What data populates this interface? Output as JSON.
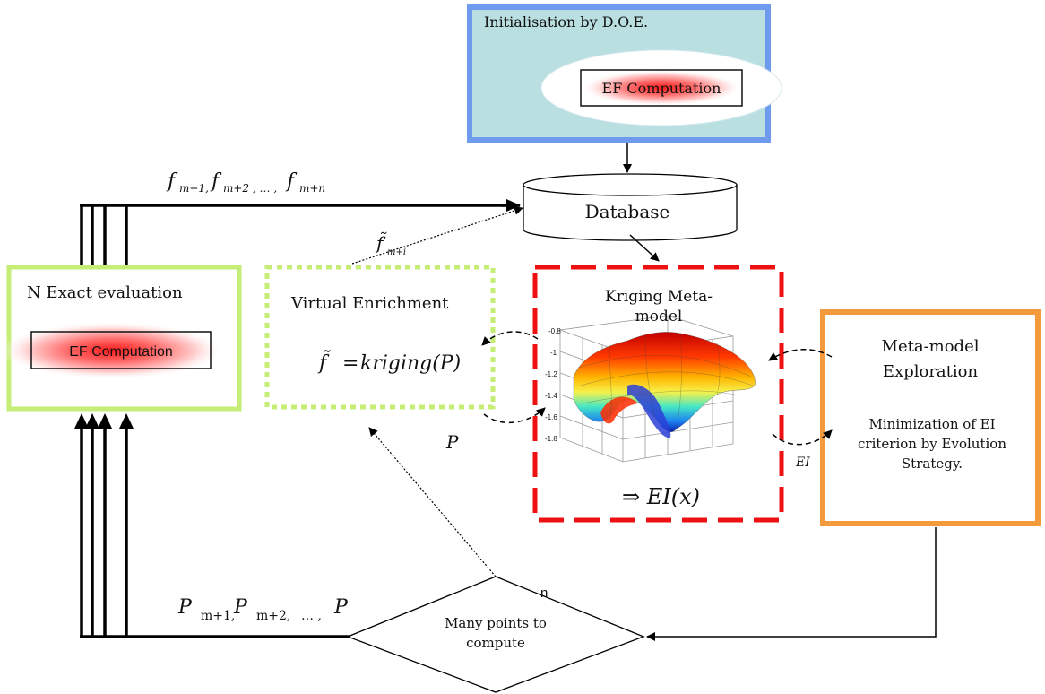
{
  "init_box": {
    "title": "Initialisation by D.O.E.",
    "ef_label": "EF Computation",
    "border_color": "#6f9bef",
    "fill_color": "#b9dfe0"
  },
  "database": {
    "label": "Database"
  },
  "exact_eval": {
    "title": "N Exact evaluation",
    "ef_label": "EF Computation",
    "border_color": "#c6ed76"
  },
  "virtual_enrichment": {
    "title": "Virtual Enrichment",
    "formula_lhs": "f̃",
    "formula_eq": "=",
    "formula_rhs": "kriging(P)",
    "border_color": "#c6ed76"
  },
  "kriging": {
    "title_line1": "Kriging Meta-",
    "title_line2": "model",
    "formula": "⇒ EI(x)",
    "border_color": "#ee1111",
    "z_ticks": [
      "-0.8",
      "-1",
      "-1.2",
      "-1.4",
      "-1.6",
      "-1.8"
    ]
  },
  "exploration": {
    "title_line1": "Meta-model",
    "title_line2": "Exploration",
    "desc_line1": "Minimization of EI",
    "desc_line2": "criterion by Evolution",
    "desc_line3": "Strategy.",
    "border_color": "#f39a3c"
  },
  "decision": {
    "line1": "Many points to",
    "line2": "compute",
    "n_label": "n"
  },
  "edge_labels": {
    "f_base": "f",
    "f_sub1": "m+1,",
    "f_sub2": "m+2 , … ,",
    "f_sub3": "m+n",
    "f_tilde_base": "f̃",
    "f_tilde_sub": "m+i",
    "p_base": "P",
    "p_sub1": "m+1,",
    "p_sub2": "m+2,",
    "p_ellipsis": "… ,",
    "p_middle": "P",
    "ei": "EI"
  }
}
